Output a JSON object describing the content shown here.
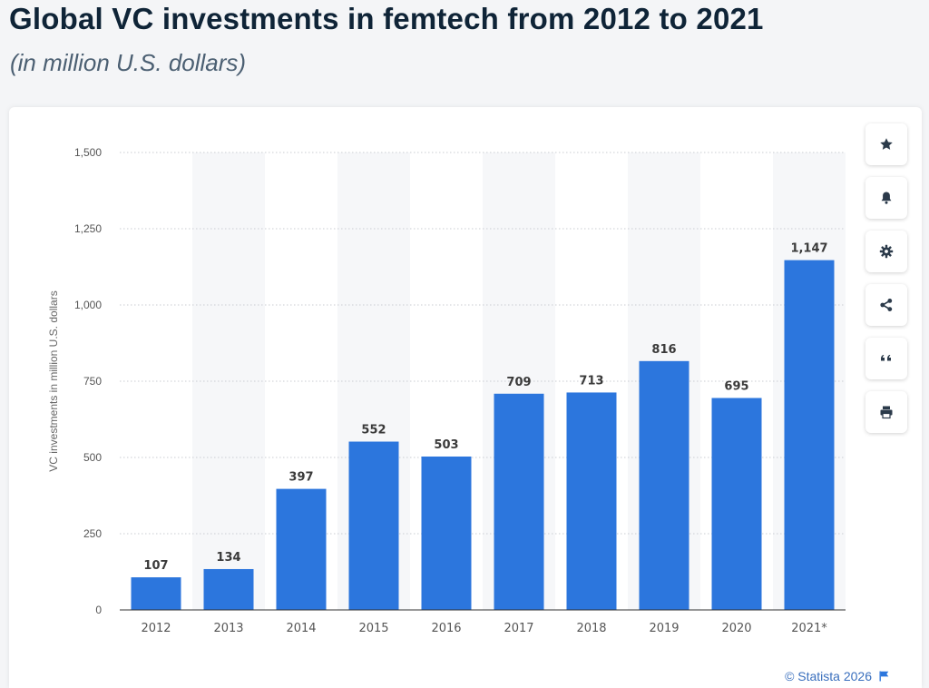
{
  "header": {
    "title": "Global VC investments in femtech from 2012 to 2021",
    "subtitle": "(in million U.S. dollars)"
  },
  "toolbar": {
    "buttons": [
      {
        "icon": "star-icon"
      },
      {
        "icon": "bell-icon"
      },
      {
        "icon": "gear-icon"
      },
      {
        "icon": "share-icon"
      },
      {
        "icon": "quote-icon"
      },
      {
        "icon": "print-icon"
      }
    ]
  },
  "footer": {
    "credit": "© Statista 2026",
    "flag_icon": "flag-icon"
  },
  "colors": {
    "bar": "#2c76dd",
    "band": "#f6f7f9",
    "grid": "#c9cdd2",
    "axis": "#333333",
    "tick_text": "#555555",
    "value_text": "#3a3a3a"
  },
  "chart_data": {
    "type": "bar",
    "categories": [
      "2012",
      "2013",
      "2014",
      "2015",
      "2016",
      "2017",
      "2018",
      "2019",
      "2020",
      "2021*"
    ],
    "values": [
      107,
      134,
      397,
      552,
      503,
      709,
      713,
      816,
      695,
      1147
    ],
    "value_labels": [
      "107",
      "134",
      "397",
      "552",
      "503",
      "709",
      "713",
      "816",
      "695",
      "1,147"
    ],
    "title": "Global VC investments in femtech from 2012 to 2021",
    "subtitle": "(in million U.S. dollars)",
    "xlabel": "",
    "ylabel": "VC investments in million U.S. dollars",
    "ylim": [
      0,
      1500
    ],
    "yticks": [
      0,
      250,
      500,
      750,
      1000,
      1250,
      1500
    ],
    "ytick_labels": [
      "0",
      "250",
      "500",
      "750",
      "1,000",
      "1,250",
      "1,500"
    ],
    "grid": true,
    "legend": "none"
  }
}
